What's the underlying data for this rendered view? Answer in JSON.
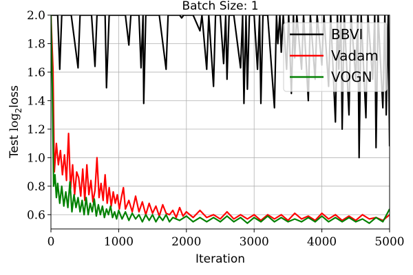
{
  "chart_data": {
    "type": "line",
    "title": "Batch Size: 1",
    "xlabel": "Iteration",
    "ylabel": "Test log₂loss",
    "ylabel_main": "Test ",
    "ylabel_log": "log",
    "ylabel_sub": "2",
    "ylabel_tail": "loss",
    "xlim": [
      0,
      5000
    ],
    "ylim": [
      0.5,
      2.0
    ],
    "xticks": [
      0,
      1000,
      2000,
      3000,
      4000,
      5000
    ],
    "xtick_labels": [
      "0",
      "1000",
      "2000",
      "3000",
      "4000",
      "5000"
    ],
    "yticks": [
      0.6,
      0.8,
      1.0,
      1.2,
      1.4,
      1.6,
      1.8,
      2.0
    ],
    "ytick_labels": [
      "0.6",
      "0.8",
      "1.0",
      "1.2",
      "1.4",
      "1.6",
      "1.8",
      "2.0"
    ],
    "grid": true,
    "legend_position": "top-right",
    "series": [
      {
        "name": "BBVI",
        "color": "#000000",
        "points": [
          [
            0,
            2.0
          ],
          [
            20,
            2.0
          ],
          [
            60,
            2.0
          ],
          [
            100,
            2.0
          ],
          [
            130,
            1.62
          ],
          [
            160,
            2.0
          ],
          [
            200,
            2.0
          ],
          [
            300,
            2.0
          ],
          [
            400,
            1.63
          ],
          [
            430,
            2.0
          ],
          [
            500,
            2.0
          ],
          [
            600,
            2.0
          ],
          [
            650,
            1.64
          ],
          [
            680,
            2.0
          ],
          [
            800,
            2.0
          ],
          [
            820,
            1.49
          ],
          [
            860,
            2.0
          ],
          [
            1000,
            2.0
          ],
          [
            1100,
            2.0
          ],
          [
            1150,
            1.79
          ],
          [
            1180,
            2.0
          ],
          [
            1200,
            2.0
          ],
          [
            1300,
            2.0
          ],
          [
            1330,
            1.63
          ],
          [
            1360,
            2.0
          ],
          [
            1370,
            1.38
          ],
          [
            1400,
            2.0
          ],
          [
            1500,
            2.0
          ],
          [
            1600,
            2.0
          ],
          [
            1700,
            1.62
          ],
          [
            1730,
            2.0
          ],
          [
            1800,
            2.0
          ],
          [
            1900,
            2.0
          ],
          [
            1930,
            1.98
          ],
          [
            1960,
            2.0
          ],
          [
            2000,
            2.0
          ],
          [
            2100,
            2.0
          ],
          [
            2200,
            1.89
          ],
          [
            2230,
            2.0
          ],
          [
            2300,
            1.62
          ],
          [
            2330,
            2.0
          ],
          [
            2400,
            1.5
          ],
          [
            2430,
            2.0
          ],
          [
            2500,
            2.0
          ],
          [
            2550,
            1.66
          ],
          [
            2580,
            2.0
          ],
          [
            2600,
            1.55
          ],
          [
            2630,
            2.0
          ],
          [
            2700,
            2.0
          ],
          [
            2800,
            1.63
          ],
          [
            2830,
            2.0
          ],
          [
            2850,
            1.38
          ],
          [
            2880,
            2.0
          ],
          [
            2900,
            1.48
          ],
          [
            2930,
            2.0
          ],
          [
            3000,
            2.0
          ],
          [
            3050,
            1.62
          ],
          [
            3080,
            2.0
          ],
          [
            3100,
            1.38
          ],
          [
            3130,
            2.0
          ],
          [
            3200,
            2.0
          ],
          [
            3300,
            1.35
          ],
          [
            3330,
            2.0
          ],
          [
            3350,
            1.8
          ],
          [
            3380,
            2.0
          ],
          [
            3400,
            1.74
          ],
          [
            3430,
            2.0
          ],
          [
            3480,
            1.62
          ],
          [
            3510,
            2.0
          ],
          [
            3550,
            1.45
          ],
          [
            3580,
            2.0
          ],
          [
            3600,
            1.7
          ],
          [
            3630,
            2.0
          ],
          [
            3700,
            1.62
          ],
          [
            3730,
            2.0
          ],
          [
            3800,
            1.4
          ],
          [
            3830,
            2.0
          ],
          [
            3900,
            1.55
          ],
          [
            3930,
            2.0
          ],
          [
            4000,
            1.65
          ],
          [
            4030,
            2.0
          ],
          [
            4100,
            1.5
          ],
          [
            4130,
            2.0
          ],
          [
            4200,
            1.25
          ],
          [
            4230,
            2.0
          ],
          [
            4250,
            1.62
          ],
          [
            4280,
            2.0
          ],
          [
            4300,
            1.2
          ],
          [
            4330,
            2.0
          ],
          [
            4400,
            1.3
          ],
          [
            4430,
            2.0
          ],
          [
            4500,
            1.55
          ],
          [
            4530,
            2.0
          ],
          [
            4550,
            1.0
          ],
          [
            4580,
            2.0
          ],
          [
            4650,
            1.28
          ],
          [
            4680,
            2.0
          ],
          [
            4750,
            1.55
          ],
          [
            4780,
            2.0
          ],
          [
            4800,
            1.07
          ],
          [
            4830,
            2.0
          ],
          [
            4900,
            1.35
          ],
          [
            4930,
            2.0
          ],
          [
            4950,
            1.3
          ],
          [
            4980,
            2.0
          ],
          [
            5000,
            1.08
          ]
        ]
      },
      {
        "name": "Vadam",
        "color": "#ff0000",
        "points": [
          [
            0,
            2.0
          ],
          [
            30,
            1.62
          ],
          [
            50,
            0.9
          ],
          [
            80,
            1.1
          ],
          [
            110,
            0.95
          ],
          [
            140,
            1.05
          ],
          [
            170,
            0.88
          ],
          [
            200,
            1.02
          ],
          [
            230,
            0.84
          ],
          [
            260,
            1.17
          ],
          [
            290,
            0.78
          ],
          [
            320,
            0.95
          ],
          [
            350,
            0.74
          ],
          [
            380,
            0.9
          ],
          [
            410,
            0.86
          ],
          [
            440,
            0.73
          ],
          [
            470,
            0.92
          ],
          [
            500,
            0.7
          ],
          [
            530,
            0.95
          ],
          [
            560,
            0.74
          ],
          [
            590,
            0.84
          ],
          [
            620,
            0.69
          ],
          [
            650,
            0.77
          ],
          [
            680,
            1.0
          ],
          [
            710,
            0.72
          ],
          [
            740,
            0.82
          ],
          [
            770,
            0.7
          ],
          [
            800,
            0.88
          ],
          [
            830,
            0.68
          ],
          [
            860,
            0.79
          ],
          [
            890,
            0.66
          ],
          [
            920,
            0.76
          ],
          [
            950,
            0.68
          ],
          [
            980,
            0.74
          ],
          [
            1010,
            0.64
          ],
          [
            1040,
            0.72
          ],
          [
            1070,
            0.79
          ],
          [
            1100,
            0.64
          ],
          [
            1150,
            0.7
          ],
          [
            1200,
            0.62
          ],
          [
            1250,
            0.73
          ],
          [
            1300,
            0.62
          ],
          [
            1350,
            0.69
          ],
          [
            1400,
            0.6
          ],
          [
            1450,
            0.68
          ],
          [
            1500,
            0.61
          ],
          [
            1550,
            0.66
          ],
          [
            1600,
            0.59
          ],
          [
            1650,
            0.67
          ],
          [
            1700,
            0.61
          ],
          [
            1750,
            0.6
          ],
          [
            1800,
            0.63
          ],
          [
            1850,
            0.58
          ],
          [
            1900,
            0.65
          ],
          [
            1950,
            0.59
          ],
          [
            2000,
            0.62
          ],
          [
            2100,
            0.58
          ],
          [
            2200,
            0.63
          ],
          [
            2300,
            0.58
          ],
          [
            2400,
            0.6
          ],
          [
            2500,
            0.57
          ],
          [
            2600,
            0.62
          ],
          [
            2700,
            0.57
          ],
          [
            2800,
            0.6
          ],
          [
            2900,
            0.57
          ],
          [
            3000,
            0.6
          ],
          [
            3100,
            0.56
          ],
          [
            3200,
            0.6
          ],
          [
            3300,
            0.57
          ],
          [
            3400,
            0.6
          ],
          [
            3500,
            0.56
          ],
          [
            3600,
            0.61
          ],
          [
            3700,
            0.57
          ],
          [
            3800,
            0.59
          ],
          [
            3900,
            0.56
          ],
          [
            4000,
            0.61
          ],
          [
            4100,
            0.57
          ],
          [
            4200,
            0.6
          ],
          [
            4300,
            0.56
          ],
          [
            4400,
            0.59
          ],
          [
            4500,
            0.56
          ],
          [
            4600,
            0.6
          ],
          [
            4700,
            0.57
          ],
          [
            4800,
            0.58
          ],
          [
            4900,
            0.56
          ],
          [
            5000,
            0.6
          ]
        ]
      },
      {
        "name": "VOGN",
        "color": "#008000",
        "points": [
          [
            0,
            2.0
          ],
          [
            20,
            1.5
          ],
          [
            40,
            0.8
          ],
          [
            60,
            0.88
          ],
          [
            80,
            0.72
          ],
          [
            100,
            0.82
          ],
          [
            130,
            0.68
          ],
          [
            160,
            0.8
          ],
          [
            190,
            0.66
          ],
          [
            220,
            0.76
          ],
          [
            250,
            0.65
          ],
          [
            280,
            0.83
          ],
          [
            310,
            0.62
          ],
          [
            340,
            0.74
          ],
          [
            370,
            0.65
          ],
          [
            400,
            0.72
          ],
          [
            430,
            0.62
          ],
          [
            460,
            0.7
          ],
          [
            490,
            0.6
          ],
          [
            520,
            0.72
          ],
          [
            550,
            0.6
          ],
          [
            580,
            0.68
          ],
          [
            610,
            0.62
          ],
          [
            640,
            0.71
          ],
          [
            670,
            0.59
          ],
          [
            700,
            0.67
          ],
          [
            730,
            0.6
          ],
          [
            760,
            0.66
          ],
          [
            790,
            0.58
          ],
          [
            820,
            0.64
          ],
          [
            850,
            0.6
          ],
          [
            880,
            0.66
          ],
          [
            910,
            0.58
          ],
          [
            940,
            0.62
          ],
          [
            970,
            0.57
          ],
          [
            1000,
            0.63
          ],
          [
            1050,
            0.57
          ],
          [
            1100,
            0.62
          ],
          [
            1150,
            0.56
          ],
          [
            1200,
            0.61
          ],
          [
            1250,
            0.57
          ],
          [
            1300,
            0.6
          ],
          [
            1350,
            0.55
          ],
          [
            1400,
            0.6
          ],
          [
            1450,
            0.56
          ],
          [
            1500,
            0.6
          ],
          [
            1550,
            0.55
          ],
          [
            1600,
            0.59
          ],
          [
            1650,
            0.56
          ],
          [
            1700,
            0.6
          ],
          [
            1750,
            0.55
          ],
          [
            1800,
            0.58
          ],
          [
            1900,
            0.56
          ],
          [
            2000,
            0.59
          ],
          [
            2100,
            0.55
          ],
          [
            2200,
            0.58
          ],
          [
            2300,
            0.55
          ],
          [
            2400,
            0.58
          ],
          [
            2500,
            0.55
          ],
          [
            2600,
            0.59
          ],
          [
            2700,
            0.55
          ],
          [
            2800,
            0.58
          ],
          [
            2900,
            0.54
          ],
          [
            3000,
            0.58
          ],
          [
            3100,
            0.55
          ],
          [
            3200,
            0.59
          ],
          [
            3300,
            0.55
          ],
          [
            3400,
            0.58
          ],
          [
            3500,
            0.55
          ],
          [
            3600,
            0.57
          ],
          [
            3700,
            0.55
          ],
          [
            3800,
            0.58
          ],
          [
            3900,
            0.55
          ],
          [
            4000,
            0.59
          ],
          [
            4100,
            0.55
          ],
          [
            4200,
            0.58
          ],
          [
            4300,
            0.55
          ],
          [
            4400,
            0.58
          ],
          [
            4500,
            0.55
          ],
          [
            4600,
            0.57
          ],
          [
            4700,
            0.54
          ],
          [
            4800,
            0.58
          ],
          [
            4900,
            0.55
          ],
          [
            5000,
            0.64
          ]
        ]
      }
    ]
  }
}
